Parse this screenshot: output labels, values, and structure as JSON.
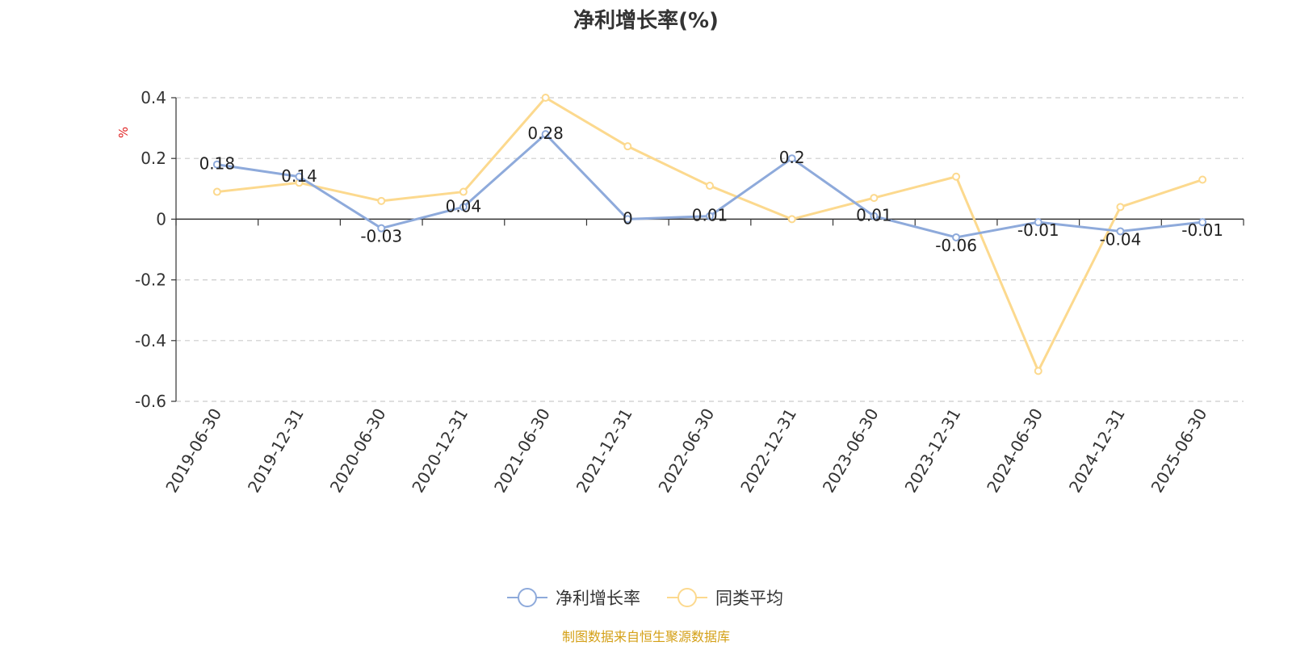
{
  "chart_data": {
    "type": "line",
    "title": "净利增长率(%)",
    "ylabel": "%",
    "ylim": [
      -0.6,
      0.4
    ],
    "yticks": [
      0.4,
      0.2,
      0,
      -0.2,
      -0.4,
      -0.6
    ],
    "ytick_labels": [
      "0.4",
      "0.2",
      "0",
      "-0.2",
      "-0.4",
      "-0.6"
    ],
    "grid": true,
    "legend_position": "bottom-center",
    "categories": [
      "2019-06-30",
      "2019-12-31",
      "2020-06-30",
      "2020-12-31",
      "2021-06-30",
      "2021-12-31",
      "2022-06-30",
      "2022-12-31",
      "2023-06-30",
      "2023-12-31",
      "2024-06-30",
      "2024-12-31",
      "2025-06-30"
    ],
    "series": [
      {
        "name": "净利增长率",
        "color": "#8eaadb",
        "values": [
          0.18,
          0.14,
          -0.03,
          0.04,
          0.28,
          0,
          0.01,
          0.2,
          0.01,
          -0.06,
          -0.01,
          -0.04,
          -0.01
        ],
        "labels": [
          "0.18",
          "0.14",
          "-0.03",
          "0.04",
          "0.28",
          "0",
          "0.01",
          "0.2",
          "0.01",
          "-0.06",
          "-0.01",
          "-0.04",
          "-0.01"
        ]
      },
      {
        "name": "同类平均",
        "color": "#fcd98e",
        "values": [
          0.09,
          0.12,
          0.06,
          0.09,
          0.4,
          0.24,
          0.11,
          0,
          0.07,
          0.14,
          -0.5,
          0.04,
          0.13
        ]
      }
    ],
    "source": "制图数据来自恒生聚源数据库"
  }
}
